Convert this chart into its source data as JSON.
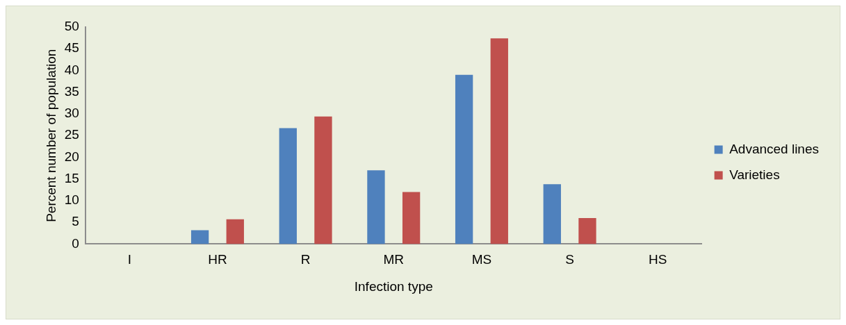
{
  "chart_data": {
    "type": "bar",
    "xlabel": "Infection type",
    "ylabel": "Percent number of population",
    "categories": [
      "I",
      "HR",
      "R",
      "MR",
      "MS",
      "S",
      "HS"
    ],
    "series": [
      {
        "name": "Advanced lines",
        "color": "#4f81bd",
        "values": [
          0,
          3.2,
          26.7,
          17,
          39,
          13.8,
          0
        ]
      },
      {
        "name": "Varieties",
        "color": "#c0504d",
        "values": [
          0,
          5.7,
          29.4,
          12,
          47.4,
          6,
          0
        ]
      }
    ],
    "ylim": [
      0,
      50
    ],
    "yticks": [
      0,
      5,
      10,
      15,
      20,
      25,
      30,
      35,
      40,
      45,
      50
    ],
    "grid": false,
    "legend": "right"
  }
}
